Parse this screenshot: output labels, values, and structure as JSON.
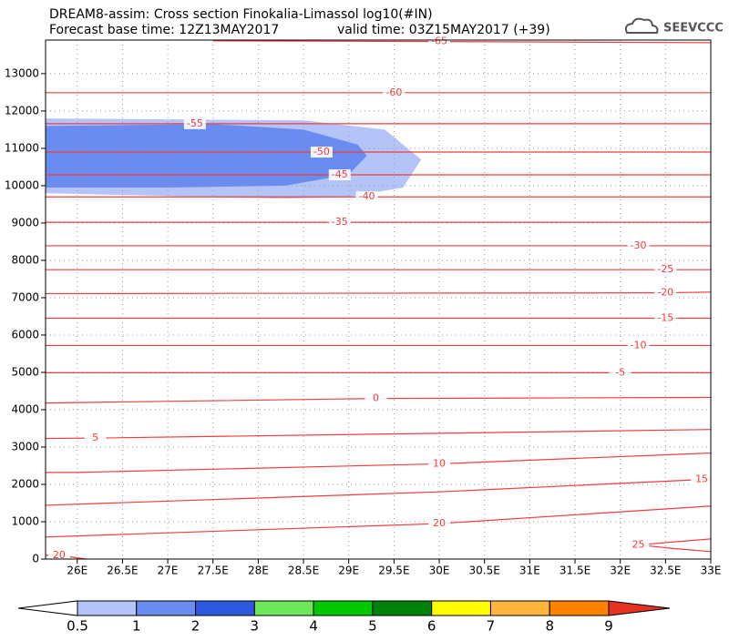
{
  "chart_data": {
    "type": "contour",
    "title": "DREAM8-assim: Cross section Finokalia-Limassol log10(#IN)",
    "subtitle_left": "Forecast base time: 12Z13MAY2017",
    "subtitle_right": "valid time: 03Z15MAY2017 (+39)",
    "logo": "SEEVCCC",
    "xlim": [
      25.65,
      33
    ],
    "ylim": [
      0,
      13900
    ],
    "xticks": [
      {
        "value": 26,
        "label": "26E"
      },
      {
        "value": 26.5,
        "label": "26.5E"
      },
      {
        "value": 27,
        "label": "27E"
      },
      {
        "value": 27.5,
        "label": "27.5E"
      },
      {
        "value": 28,
        "label": "28E"
      },
      {
        "value": 28.5,
        "label": "28.5E"
      },
      {
        "value": 29,
        "label": "29E"
      },
      {
        "value": 29.5,
        "label": "29.5E"
      },
      {
        "value": 30,
        "label": "30E"
      },
      {
        "value": 30.5,
        "label": "30.5E"
      },
      {
        "value": 31,
        "label": "31E"
      },
      {
        "value": 31.5,
        "label": "31.5E"
      },
      {
        "value": 32,
        "label": "32E"
      },
      {
        "value": 32.5,
        "label": "32.5E"
      },
      {
        "value": 33,
        "label": "33E"
      }
    ],
    "yticks": [
      0,
      1000,
      2000,
      3000,
      4000,
      5000,
      6000,
      7000,
      8000,
      9000,
      10000,
      11000,
      12000,
      13000
    ],
    "grid": true,
    "contour_color": "#f03c3c",
    "fills": [
      {
        "color": "#b4c4f8",
        "x": [
          25.65,
          28.5,
          29.4,
          29.8,
          29.6,
          29.0,
          28.3,
          25.65
        ],
        "y": [
          11800,
          11750,
          11500,
          10700,
          9950,
          9700,
          9650,
          9800
        ]
      },
      {
        "color": "#6a8cf0",
        "x": [
          25.65,
          27.5,
          28.5,
          29.1,
          29.2,
          29.0,
          28.3,
          27.0,
          25.65
        ],
        "y": [
          11600,
          11650,
          11500,
          11100,
          10800,
          10300,
          10000,
          9950,
          9950
        ]
      }
    ],
    "contours": [
      {
        "level": -65,
        "x": [
          27.5,
          30,
          33
        ],
        "y": [
          13880,
          13860,
          13830
        ]
      },
      {
        "level": -60,
        "x": [
          25.65,
          29.5,
          33
        ],
        "y": [
          12490,
          12490,
          12490
        ]
      },
      {
        "level": -55,
        "x": [
          25.65,
          27.3,
          33
        ],
        "y": [
          11660,
          11660,
          11660
        ]
      },
      {
        "level": -50,
        "x": [
          25.65,
          28.7,
          33
        ],
        "y": [
          10900,
          10900,
          10900
        ]
      },
      {
        "level": -45,
        "x": [
          25.65,
          28.9,
          33
        ],
        "y": [
          10290,
          10290,
          10290
        ]
      },
      {
        "level": -40,
        "x": [
          25.65,
          29.2,
          33
        ],
        "y": [
          9700,
          9700,
          9700
        ]
      },
      {
        "level": -35,
        "x": [
          25.65,
          28.9,
          33
        ],
        "y": [
          9020,
          9020,
          9020
        ]
      },
      {
        "level": -30,
        "x": [
          25.65,
          32.2,
          33
        ],
        "y": [
          8390,
          8390,
          8390
        ]
      },
      {
        "level": -25,
        "x": [
          25.65,
          32.5,
          33
        ],
        "y": [
          7750,
          7750,
          7750
        ]
      },
      {
        "level": -20,
        "x": [
          25.65,
          32.5,
          33
        ],
        "y": [
          7110,
          7130,
          7150
        ]
      },
      {
        "level": -15,
        "x": [
          25.65,
          32.5,
          33
        ],
        "y": [
          6450,
          6450,
          6450
        ]
      },
      {
        "level": -10,
        "x": [
          25.65,
          32.2,
          33
        ],
        "y": [
          5720,
          5720,
          5720
        ]
      },
      {
        "level": -5,
        "x": [
          25.65,
          32.0,
          33
        ],
        "y": [
          4990,
          4990,
          4990
        ]
      },
      {
        "level": 0,
        "x": [
          25.65,
          29.3,
          33
        ],
        "y": [
          4180,
          4300,
          4330
        ]
      },
      {
        "level": 5,
        "x": [
          25.65,
          26.2,
          33
        ],
        "y": [
          3230,
          3240,
          3470
        ]
      },
      {
        "level": 10,
        "x": [
          25.65,
          26.0,
          30,
          33
        ],
        "y": [
          2320,
          2320,
          2550,
          2840
        ]
      },
      {
        "level": 15,
        "x": [
          25.65,
          30,
          32.9,
          33
        ],
        "y": [
          1440,
          1800,
          2130,
          2130
        ]
      },
      {
        "level": 20,
        "x": [
          25.65,
          30,
          33
        ],
        "y": [
          590,
          950,
          1420
        ]
      },
      {
        "level": 20,
        "x": [
          25.65,
          25.8,
          26.1
        ],
        "y": [
          100,
          100,
          0
        ]
      },
      {
        "level": 25,
        "x": [
          33,
          32.6,
          32.2,
          32.9,
          33
        ],
        "y": [
          200,
          280,
          380,
          520,
          540
        ]
      }
    ],
    "colorbar": {
      "levels": [
        0.5,
        1,
        2,
        3,
        4,
        5,
        6,
        7,
        8,
        9
      ],
      "colors": [
        "#b4c4f8",
        "#6a8cf0",
        "#2f58e0",
        "#6ee65a",
        "#00c800",
        "#00820a",
        "#ffff00",
        "#ffb43c",
        "#ff8200"
      ],
      "under_color": "#ffffff",
      "over_color": "#e6321e"
    }
  }
}
